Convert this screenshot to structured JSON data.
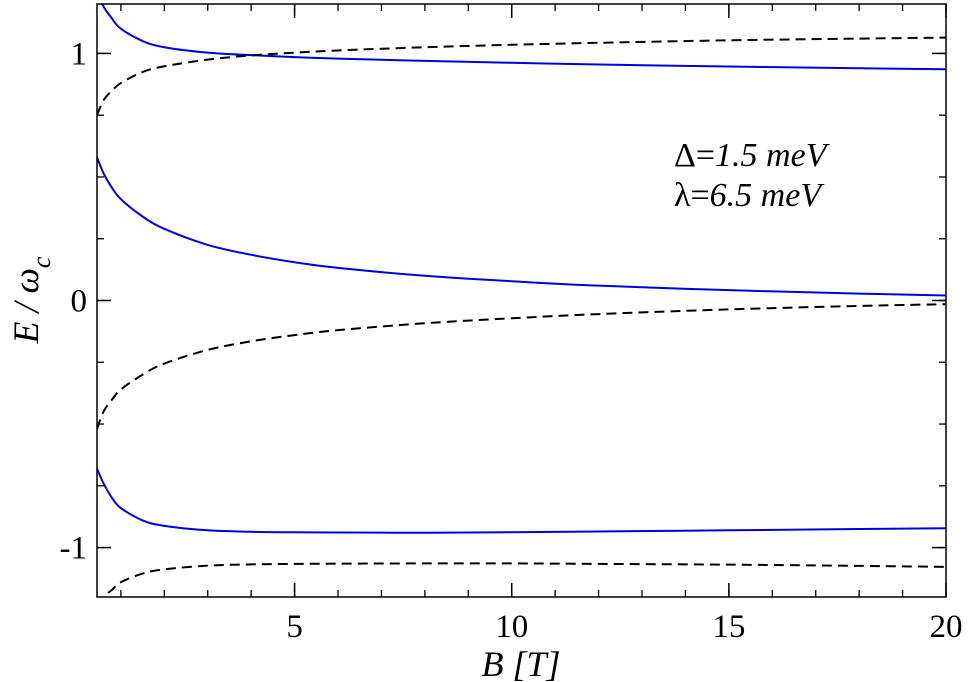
{
  "chart_data": {
    "type": "line",
    "xlabel": "B [T]",
    "ylabel": {
      "main": "E / ω",
      "sub": "c"
    },
    "xlim": [
      0.45,
      20
    ],
    "ylim": [
      -1.2,
      1.2
    ],
    "x_ticks": [
      {
        "value": 5,
        "label": "5"
      },
      {
        "value": 10,
        "label": "10"
      },
      {
        "value": 15,
        "label": "15"
      },
      {
        "value": 20,
        "label": "20"
      }
    ],
    "y_ticks": [
      {
        "value": -1,
        "label": "-1"
      },
      {
        "value": 0,
        "label": "0"
      },
      {
        "value": 1,
        "label": "1"
      }
    ],
    "x_minor_step": 1,
    "y_minor_step": 0.25,
    "grid": false,
    "annotations": [
      {
        "prefix": "Δ=",
        "value": "1.5 meV"
      },
      {
        "prefix": "λ=",
        "value": "6.5 meV"
      }
    ],
    "series": [
      {
        "style": "solid",
        "color": "#0000dd",
        "x": [
          0.45,
          0.6,
          0.8,
          1.0,
          1.5,
          2,
          3,
          4,
          5,
          6,
          8,
          10,
          12,
          15,
          18,
          20
        ],
        "y": [
          1.25,
          1.19,
          1.14,
          1.1,
          1.05,
          1.025,
          1.003,
          0.993,
          0.985,
          0.979,
          0.97,
          0.962,
          0.955,
          0.947,
          0.94,
          0.936
        ]
      },
      {
        "style": "dashed",
        "color": "#000000",
        "x": [
          0.45,
          0.6,
          0.8,
          1.0,
          1.5,
          2,
          3,
          4,
          5,
          6,
          8,
          10,
          12,
          15,
          18,
          20
        ],
        "y": [
          0.75,
          0.81,
          0.85,
          0.88,
          0.925,
          0.948,
          0.975,
          0.992,
          1.003,
          1.012,
          1.025,
          1.035,
          1.043,
          1.053,
          1.06,
          1.064
        ]
      },
      {
        "style": "solid",
        "color": "#0000dd",
        "x": [
          0.45,
          0.6,
          0.8,
          1.0,
          1.5,
          2,
          3,
          4,
          5,
          6,
          8,
          10,
          12,
          15,
          18,
          20
        ],
        "y": [
          0.58,
          0.515,
          0.455,
          0.41,
          0.34,
          0.29,
          0.225,
          0.185,
          0.155,
          0.132,
          0.1,
          0.078,
          0.06,
          0.042,
          0.028,
          0.02
        ]
      },
      {
        "style": "dashed",
        "color": "#000000",
        "x": [
          0.45,
          0.6,
          0.8,
          1.0,
          1.5,
          2,
          3,
          4,
          5,
          6,
          8,
          10,
          12,
          15,
          18,
          20
        ],
        "y": [
          -0.52,
          -0.45,
          -0.4,
          -0.36,
          -0.3,
          -0.255,
          -0.2,
          -0.165,
          -0.14,
          -0.12,
          -0.092,
          -0.072,
          -0.055,
          -0.036,
          -0.022,
          -0.015
        ]
      },
      {
        "style": "solid",
        "color": "#0000dd",
        "x": [
          0.45,
          0.6,
          0.8,
          1.0,
          1.5,
          2,
          3,
          4,
          5,
          6,
          8,
          10,
          12,
          15,
          18,
          20
        ],
        "y": [
          -0.68,
          -0.74,
          -0.8,
          -0.84,
          -0.89,
          -0.912,
          -0.93,
          -0.936,
          -0.938,
          -0.939,
          -0.94,
          -0.938,
          -0.935,
          -0.93,
          -0.925,
          -0.922
        ]
      },
      {
        "style": "dashed",
        "color": "#000000",
        "x": [
          0.45,
          0.6,
          0.8,
          1.0,
          1.5,
          2,
          3,
          4,
          5,
          6,
          8,
          10,
          12,
          15,
          18,
          20
        ],
        "y": [
          -1.23,
          -1.2,
          -1.17,
          -1.14,
          -1.105,
          -1.088,
          -1.073,
          -1.068,
          -1.066,
          -1.065,
          -1.064,
          -1.064,
          -1.066,
          -1.069,
          -1.074,
          -1.078
        ]
      }
    ]
  }
}
